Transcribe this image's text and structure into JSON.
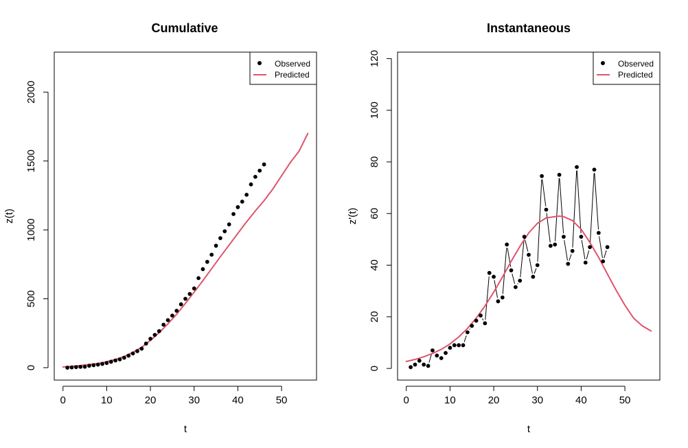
{
  "colors": {
    "observed": "#000000",
    "predicted": "#DF536B"
  },
  "chart_data": [
    {
      "type": "scatter",
      "title": "Cumulative",
      "xlabel": "t",
      "ylabel": "z(t)",
      "xlim": [
        -2,
        58
      ],
      "ylim": [
        -90,
        2290
      ],
      "xticks": [
        0,
        10,
        20,
        30,
        40,
        50
      ],
      "yticks": [
        0,
        500,
        1000,
        1500,
        2000
      ],
      "legend": {
        "position": "top-right",
        "entries": [
          "Observed",
          "Predicted"
        ]
      },
      "connect_observed": false,
      "series": [
        {
          "name": "Observed",
          "kind": "points",
          "x": [
            1,
            2,
            3,
            4,
            5,
            6,
            7,
            8,
            9,
            10,
            11,
            12,
            13,
            14,
            15,
            16,
            17,
            18,
            19,
            20,
            21,
            22,
            23,
            24,
            25,
            26,
            27,
            28,
            29,
            30,
            31,
            32,
            33,
            34,
            35,
            36,
            37,
            38,
            39,
            40,
            41,
            42,
            43,
            44,
            45,
            46
          ],
          "y": [
            0,
            2,
            4,
            6,
            7,
            14,
            18,
            22,
            27,
            34,
            43,
            52,
            60,
            72,
            87,
            103,
            120,
            138,
            175,
            210,
            238,
            265,
            312,
            345,
            378,
            413,
            460,
            500,
            535,
            575,
            650,
            715,
            768,
            820,
            885,
            940,
            990,
            1040,
            1115,
            1165,
            1205,
            1255,
            1330,
            1385,
            1430,
            1475
          ]
        },
        {
          "name": "Predicted",
          "kind": "line",
          "x": [
            0,
            2,
            4,
            6,
            8,
            10,
            12,
            14,
            16,
            18,
            20,
            22,
            24,
            26,
            28,
            30,
            32,
            34,
            36,
            38,
            40,
            42,
            44,
            46,
            48,
            50,
            52,
            54,
            56
          ],
          "y": [
            5,
            10,
            16,
            23,
            31,
            44,
            60,
            82,
            112,
            148,
            198,
            254,
            318,
            388,
            466,
            548,
            632,
            718,
            805,
            890,
            975,
            1058,
            1138,
            1212,
            1296,
            1393,
            1489,
            1571,
            1700
          ]
        }
      ]
    },
    {
      "type": "scatter",
      "title": "Instantaneous",
      "xlabel": "t",
      "ylabel": "z'(t)",
      "xlim": [
        -2,
        58
      ],
      "ylim": [
        -4.5,
        122.5
      ],
      "xticks": [
        0,
        10,
        20,
        30,
        40,
        50
      ],
      "yticks": [
        0,
        20,
        40,
        60,
        80,
        100,
        120
      ],
      "legend": {
        "position": "top-right",
        "entries": [
          "Observed",
          "Predicted"
        ]
      },
      "connect_observed": true,
      "series": [
        {
          "name": "Observed",
          "kind": "points",
          "x": [
            1,
            2,
            3,
            4,
            5,
            6,
            7,
            8,
            9,
            10,
            11,
            12,
            13,
            14,
            15,
            16,
            17,
            18,
            19,
            20,
            21,
            22,
            23,
            24,
            25,
            26,
            27,
            28,
            29,
            30,
            31,
            32,
            33,
            34,
            35,
            36,
            37,
            38,
            39,
            40,
            41,
            42,
            43,
            44,
            45,
            46
          ],
          "y": [
            0.5,
            1.5,
            3,
            1.5,
            1,
            7,
            5,
            4,
            6,
            8,
            9,
            9,
            9,
            14,
            16.5,
            18.5,
            20.5,
            17.5,
            37,
            35.5,
            26,
            27.5,
            48,
            38,
            31.5,
            34,
            51,
            44,
            35.5,
            40,
            74.5,
            61.5,
            47.5,
            48,
            75,
            51,
            40.5,
            45.5,
            78,
            51,
            41,
            47,
            77,
            52.5,
            41.5,
            47
          ]
        },
        {
          "name": "Predicted",
          "kind": "line",
          "x": [
            0,
            2,
            4,
            6,
            8,
            10,
            12,
            14,
            16,
            18,
            20,
            22,
            24,
            26,
            28,
            30,
            32,
            34,
            35,
            36,
            38,
            40,
            42,
            44,
            46,
            48,
            50,
            52,
            54,
            56
          ],
          "y": [
            2.7,
            3.5,
            4.5,
            5.8,
            7.4,
            9.5,
            12.2,
            15.5,
            19.5,
            24.2,
            29.6,
            35.4,
            41.5,
            47.3,
            52.5,
            56.2,
            58.3,
            58.8,
            59,
            58.8,
            57.3,
            53.9,
            48.8,
            43,
            36.6,
            30.3,
            24.5,
            19.5,
            16.5,
            14.5
          ]
        }
      ]
    }
  ]
}
